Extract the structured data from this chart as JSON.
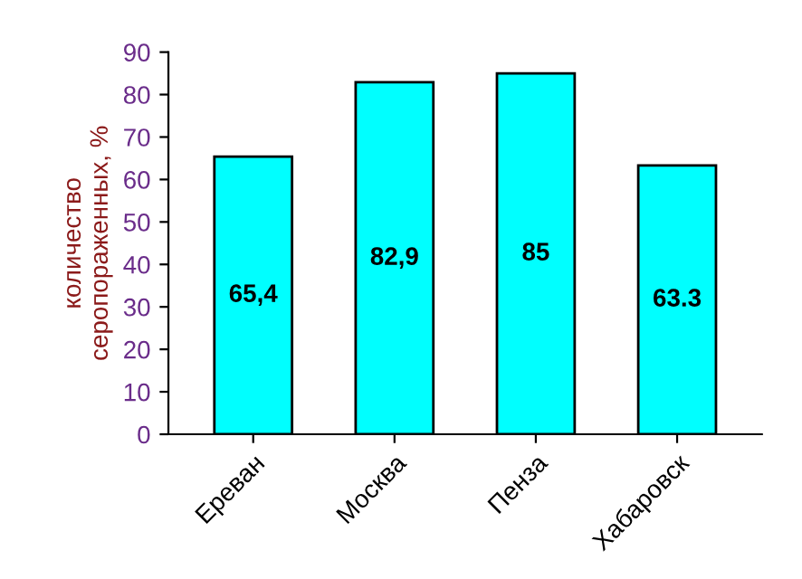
{
  "chart_data": {
    "type": "bar",
    "ylabel": "количество\nсеропораженных, %",
    "categories": [
      "Ереван",
      "Москва",
      "Пенза",
      "Хабаровск"
    ],
    "values": [
      65.4,
      82.9,
      85,
      63.3
    ],
    "value_labels": [
      "65,4",
      "82,9",
      "85",
      "63.3"
    ],
    "color": "#00ffff",
    "ylim": [
      0,
      90
    ],
    "yticks": [
      0,
      10,
      20,
      30,
      40,
      50,
      60,
      70,
      80,
      90
    ],
    "grid": false,
    "legend": false
  }
}
